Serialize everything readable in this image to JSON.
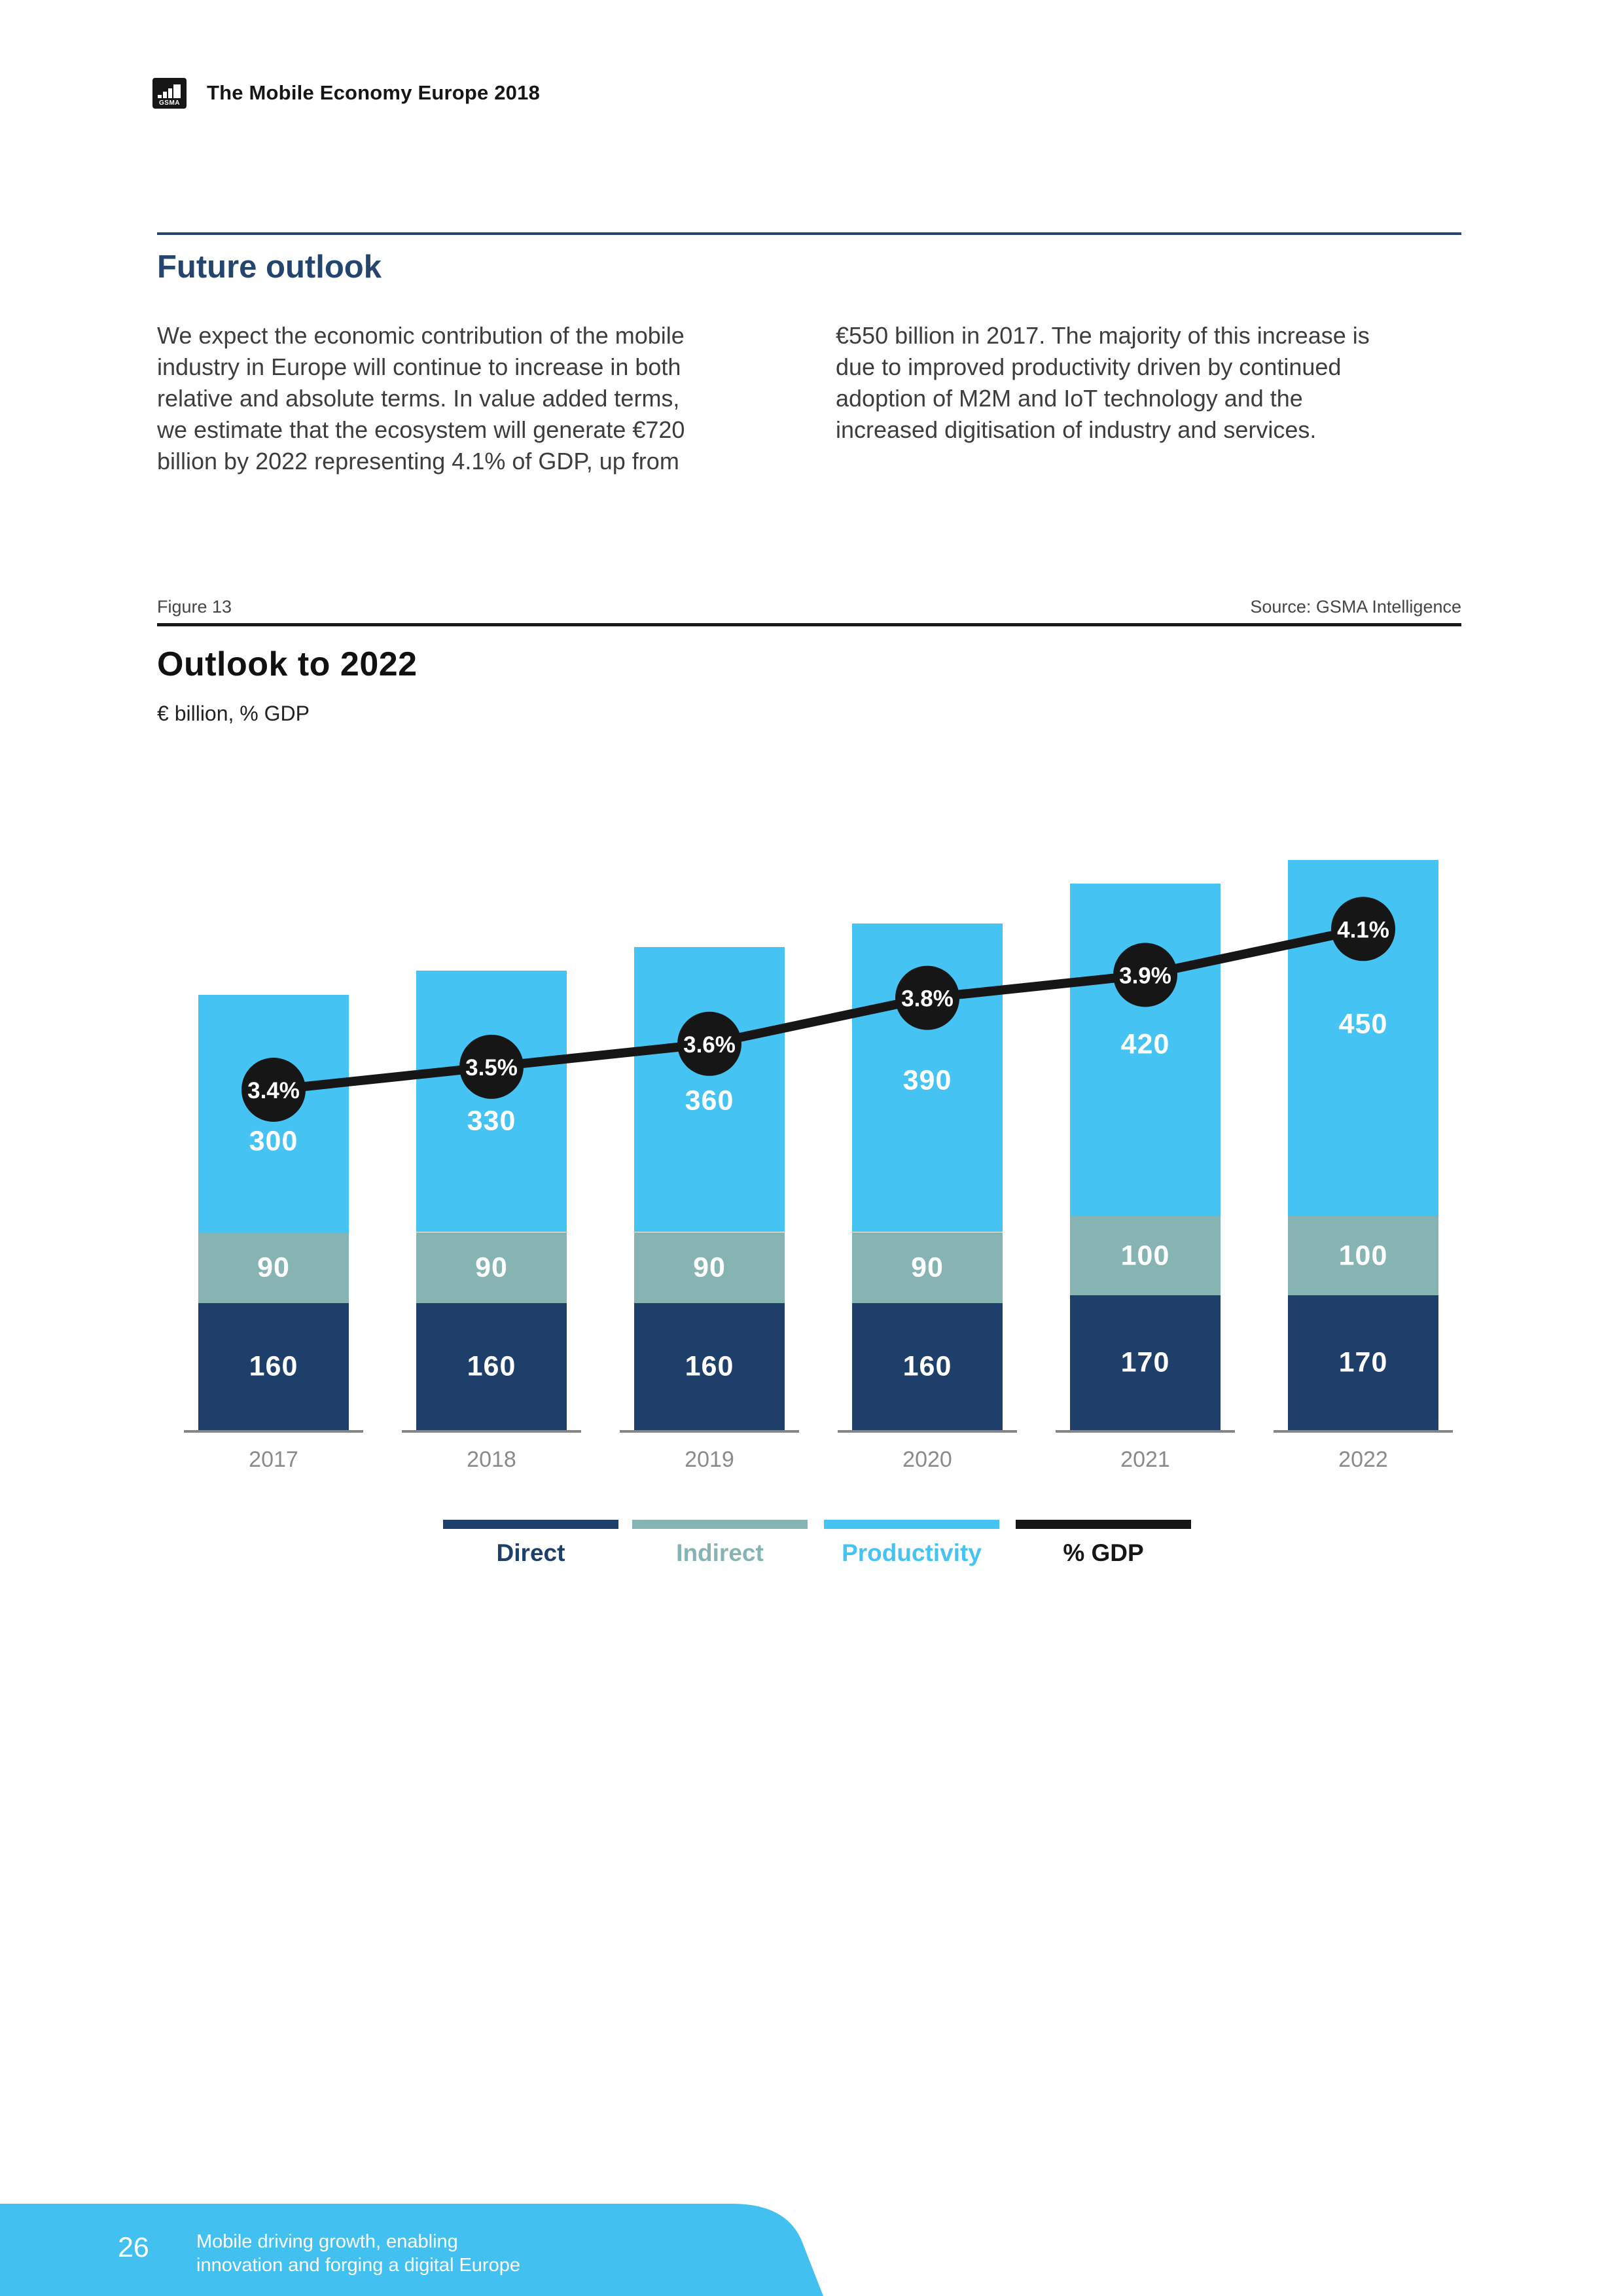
{
  "header": {
    "logo_text": "GSMA",
    "title": "The Mobile Economy Europe 2018"
  },
  "section": {
    "heading": "Future outlook",
    "col_left_lines": [
      "We expect the economic contribution of the mobile",
      "industry in Europe will continue to increase in both",
      "relative and absolute terms. In value added terms,",
      "we estimate that the ecosystem will generate €720",
      "billion by 2022 representing 4.1% of GDP, up from"
    ],
    "col_right_lines": [
      "€550 billion in 2017. The majority of this increase is",
      "due to improved productivity driven by continued",
      "adoption of M2M and IoT technology and the",
      "increased digitisation of industry and services."
    ]
  },
  "figure": {
    "label": "Figure 13",
    "source": "Source: GSMA Intelligence",
    "title": "Outlook to 2022",
    "subtitle": "€ billion, % GDP"
  },
  "chart_data": {
    "type": "bar",
    "stacked": true,
    "title": "Outlook to 2022",
    "subtitle": "€ billion, % GDP",
    "categories": [
      "2017",
      "2018",
      "2019",
      "2020",
      "2021",
      "2022"
    ],
    "series": [
      {
        "name": "Direct",
        "color": "#1d3f69",
        "values": [
          160,
          160,
          160,
          160,
          170,
          170
        ]
      },
      {
        "name": "Indirect",
        "color": "#85b4b3",
        "values": [
          90,
          90,
          90,
          90,
          100,
          100
        ]
      },
      {
        "name": "Productivity",
        "color": "#45c3f2",
        "values": [
          300,
          330,
          360,
          390,
          420,
          450
        ]
      }
    ],
    "line_series": {
      "name": "% GDP",
      "color": "#161616",
      "values": [
        3.4,
        3.5,
        3.6,
        3.8,
        3.9,
        4.1
      ],
      "labels": [
        "3.4%",
        "3.5%",
        "3.6%",
        "3.8%",
        "3.9%",
        "4.1%"
      ]
    },
    "legend": [
      {
        "label": "Direct",
        "color": "#1d3f69"
      },
      {
        "label": "Indirect",
        "color": "#85b4b3"
      },
      {
        "label": "Productivity",
        "color": "#45c3f2"
      },
      {
        "label": "% GDP",
        "color": "#161616"
      }
    ],
    "legend_position": "bottom",
    "grid": false,
    "ylim": [
      0,
      750
    ]
  },
  "footer": {
    "page_number": "26",
    "tagline_lines": [
      "Mobile driving growth, enabling",
      "innovation and forging a digital Europe"
    ]
  }
}
